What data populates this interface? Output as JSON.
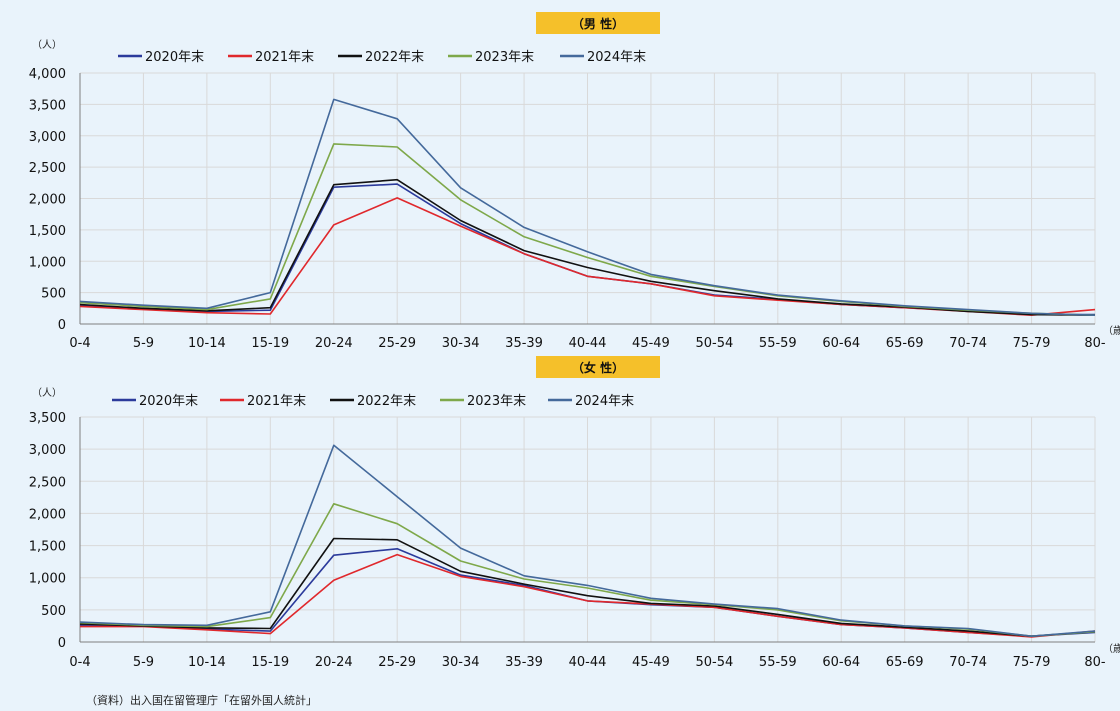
{
  "source": "（資料）出入国在留管理庁「在留外国人統計」",
  "chart_data": [
    {
      "type": "line",
      "title": "（男 性）",
      "ylabel": "（人）",
      "xlabel": "（歳）",
      "ylim": [
        0,
        4000
      ],
      "yticks": [
        0,
        500,
        1000,
        1500,
        2000,
        2500,
        3000,
        3500,
        4000
      ],
      "ytick_labels": [
        "0",
        "500",
        "1,000",
        "1,500",
        "2,000",
        "2,500",
        "3,000",
        "3,500",
        "4,000"
      ],
      "categories": [
        "0-4",
        "5-9",
        "10-14",
        "15-19",
        "20-24",
        "25-29",
        "30-34",
        "35-39",
        "40-44",
        "45-49",
        "50-54",
        "55-59",
        "60-64",
        "65-69",
        "70-74",
        "75-79",
        "80-"
      ],
      "grid": true,
      "legend": "top",
      "series": [
        {
          "name": "2020年末",
          "color": "#2b3a9b",
          "values": [
            300,
            240,
            200,
            220,
            2180,
            2230,
            1600,
            1120,
            760,
            640,
            460,
            390,
            310,
            260,
            210,
            150,
            150
          ]
        },
        {
          "name": "2021年末",
          "color": "#e0282c",
          "values": [
            280,
            230,
            180,
            160,
            1580,
            2010,
            1560,
            1120,
            760,
            640,
            450,
            380,
            310,
            260,
            200,
            140,
            230
          ]
        },
        {
          "name": "2022年末",
          "color": "#111111",
          "values": [
            310,
            250,
            210,
            260,
            2220,
            2300,
            1650,
            1170,
            900,
            680,
            530,
            400,
            320,
            270,
            200,
            150,
            140
          ]
        },
        {
          "name": "2023年末",
          "color": "#7ea84a",
          "values": [
            340,
            280,
            230,
            400,
            2870,
            2820,
            1980,
            1390,
            1060,
            760,
            600,
            450,
            360,
            280,
            220,
            170,
            140
          ]
        },
        {
          "name": "2024年末",
          "color": "#44699b",
          "values": [
            360,
            300,
            250,
            500,
            3580,
            3270,
            2170,
            1540,
            1150,
            790,
            610,
            460,
            370,
            290,
            230,
            170,
            140
          ]
        }
      ]
    },
    {
      "type": "line",
      "title": "（女 性）",
      "ylabel": "（人）",
      "xlabel": "（歳）",
      "ylim": [
        0,
        3500
      ],
      "yticks": [
        0,
        500,
        1000,
        1500,
        2000,
        2500,
        3000,
        3500
      ],
      "ytick_labels": [
        "0",
        "500",
        "1,000",
        "1,500",
        "2,000",
        "2,500",
        "3,000",
        "3,500"
      ],
      "categories": [
        "0-4",
        "5-9",
        "10-14",
        "15-19",
        "20-24",
        "25-29",
        "30-34",
        "35-39",
        "40-44",
        "45-49",
        "50-54",
        "55-59",
        "60-64",
        "65-69",
        "70-74",
        "75-79",
        "80-"
      ],
      "grid": true,
      "legend": "top",
      "series": [
        {
          "name": "2020年末",
          "color": "#2b3a9b",
          "values": [
            260,
            250,
            200,
            170,
            1350,
            1450,
            1040,
            880,
            640,
            580,
            540,
            400,
            270,
            220,
            150,
            90,
            150
          ]
        },
        {
          "name": "2021年末",
          "color": "#e0282c",
          "values": [
            240,
            240,
            190,
            130,
            960,
            1360,
            1020,
            860,
            640,
            590,
            540,
            400,
            270,
            220,
            150,
            80,
            170
          ]
        },
        {
          "name": "2022年末",
          "color": "#111111",
          "values": [
            280,
            250,
            220,
            210,
            1610,
            1590,
            1100,
            900,
            720,
            600,
            560,
            430,
            290,
            230,
            170,
            90,
            160
          ]
        },
        {
          "name": "2023年末",
          "color": "#7ea84a",
          "values": [
            300,
            260,
            240,
            380,
            2150,
            1840,
            1260,
            980,
            840,
            650,
            580,
            500,
            330,
            250,
            200,
            90,
            160
          ]
        },
        {
          "name": "2024年末",
          "color": "#44699b",
          "values": [
            310,
            270,
            260,
            470,
            3060,
            2260,
            1460,
            1030,
            880,
            680,
            590,
            520,
            340,
            250,
            210,
            90,
            170
          ]
        }
      ]
    }
  ]
}
